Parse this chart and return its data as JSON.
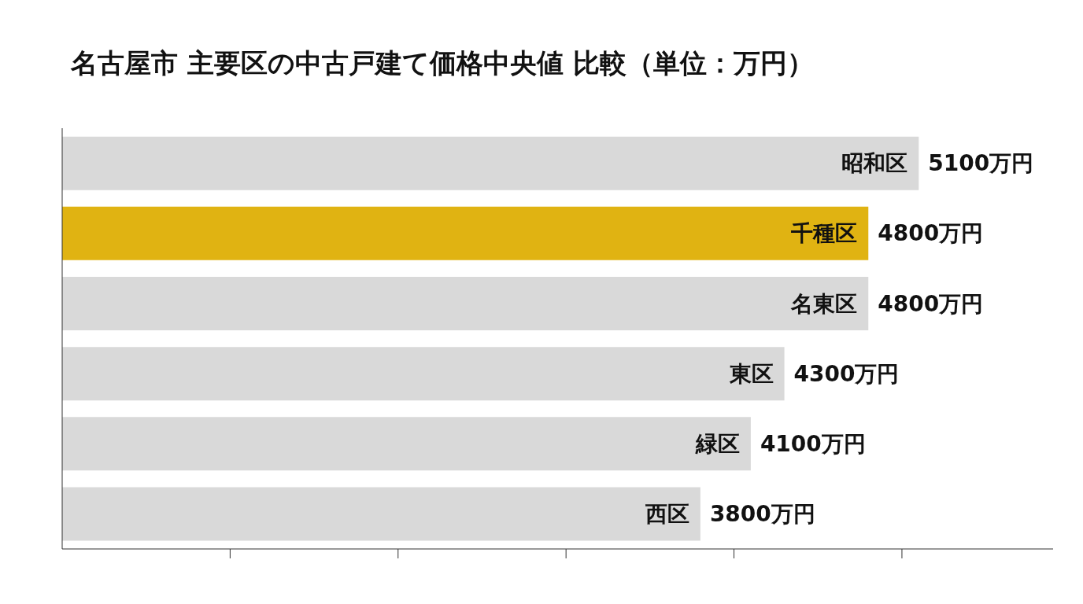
{
  "chart_data": {
    "type": "bar",
    "orientation": "horizontal",
    "title": "名古屋市 主要区の中古戸建て価格中央値 比較（単位：万円）",
    "categories": [
      "昭和区",
      "千種区",
      "名東区",
      "東区",
      "緑区",
      "西区"
    ],
    "values": [
      5100,
      4800,
      4800,
      4300,
      4100,
      3800
    ],
    "value_labels": [
      "5100万円",
      "4800万円",
      "4800万円",
      "4300万円",
      "4100万円",
      "3800万円"
    ],
    "colors": [
      "#d9d9d9",
      "#e0b312",
      "#d9d9d9",
      "#d9d9d9",
      "#d9d9d9",
      "#d9d9d9"
    ],
    "xlim": [
      0,
      5900
    ],
    "xticks": [
      {
        "value": 1000,
        "label": null
      },
      {
        "value": 2000,
        "label": null
      },
      {
        "value": 3000,
        "label": null
      },
      {
        "value": 4000,
        "label": null
      },
      {
        "value": 5000,
        "label": null
      }
    ],
    "tick_labels": false,
    "grid": false
  }
}
